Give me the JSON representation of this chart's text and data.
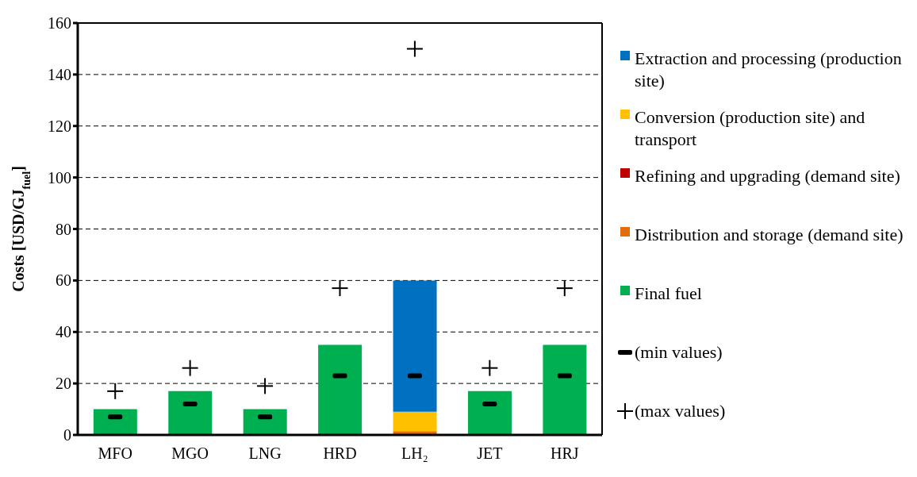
{
  "chart_data": {
    "type": "bar",
    "ylabel": "Costs [USD/GJ$_{fuel}$]",
    "categories": [
      "MFO",
      "MGO",
      "LNG",
      "HRD",
      "LH₂",
      "JET",
      "HRJ"
    ],
    "stacked": true,
    "series": [
      {
        "name": "Final fuel",
        "color": "#00b050",
        "values": [
          10,
          17,
          10,
          35,
          null,
          17,
          35
        ]
      },
      {
        "name": "Distribution and storage (demand site)",
        "color": "#e46c0a",
        "values": [
          null,
          null,
          null,
          null,
          1.5,
          null,
          null
        ]
      },
      {
        "name": "Refining and upgrading (demand site)",
        "color": "#c00000",
        "values": [
          null,
          null,
          null,
          null,
          null,
          null,
          null
        ]
      },
      {
        "name": "Conversion (production site) and transport",
        "color": "#ffc000",
        "values": [
          null,
          null,
          null,
          null,
          7.5,
          null,
          null
        ]
      },
      {
        "name": "Extraction and processing (production site)",
        "color": "#0070c0",
        "values": [
          null,
          null,
          null,
          null,
          51,
          null,
          null
        ]
      },
      {
        "name": "(min values)",
        "type": "scatter",
        "marker": "square",
        "color": "#000000",
        "values": [
          7,
          12,
          7,
          23,
          23,
          12,
          23
        ]
      },
      {
        "name": "(max values)",
        "type": "scatter",
        "marker": "cross",
        "color": "#000000",
        "values": [
          17,
          26,
          19,
          57,
          150,
          26,
          57
        ]
      }
    ],
    "ylim": [
      0,
      160
    ],
    "yticks": [
      0,
      20,
      40,
      60,
      80,
      100,
      120,
      140,
      160
    ],
    "grid": "y",
    "legend": "right"
  }
}
